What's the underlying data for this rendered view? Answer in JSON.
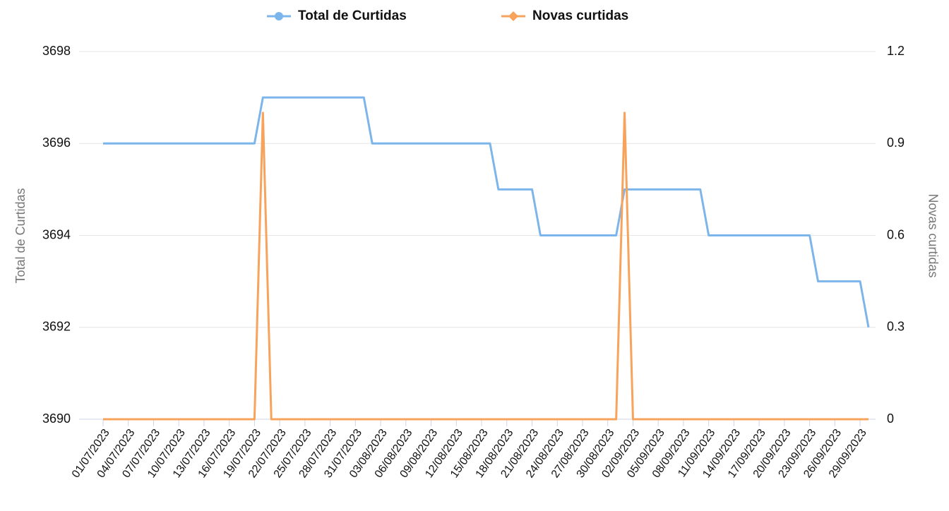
{
  "chart_data": {
    "type": "line",
    "categories": [
      "01/07/2023",
      null,
      null,
      "04/07/2023",
      null,
      null,
      "07/07/2023",
      null,
      null,
      "10/07/2023",
      null,
      null,
      "13/07/2023",
      null,
      null,
      "16/07/2023",
      null,
      null,
      "19/07/2023",
      null,
      null,
      "22/07/2023",
      null,
      null,
      "25/07/2023",
      null,
      null,
      "28/07/2023",
      null,
      null,
      "31/07/2023",
      null,
      null,
      "03/08/2023",
      null,
      null,
      "06/08/2023",
      null,
      null,
      "09/08/2023",
      null,
      null,
      "12/08/2023",
      null,
      null,
      "15/08/2023",
      null,
      null,
      "18/08/2023",
      null,
      null,
      "21/08/2023",
      null,
      null,
      "24/08/2023",
      null,
      null,
      "27/08/2023",
      null,
      null,
      "30/08/2023",
      null,
      null,
      "02/09/2023",
      null,
      null,
      "05/09/2023",
      null,
      null,
      "08/09/2023",
      null,
      null,
      "11/09/2023",
      null,
      null,
      "14/09/2023",
      null,
      null,
      "17/09/2023",
      null,
      null,
      "20/09/2023",
      null,
      null,
      "23/09/2023",
      null,
      null,
      "26/09/2023",
      null,
      null,
      "29/09/2023",
      null
    ],
    "series": [
      {
        "name": "Total de Curtidas",
        "color": "#7cb5ec",
        "axis": "y",
        "values": [
          3696,
          3696,
          3696,
          3696,
          3696,
          3696,
          3696,
          3696,
          3696,
          3696,
          3696,
          3696,
          3696,
          3696,
          3696,
          3696,
          3696,
          3696,
          3696,
          3697,
          3697,
          3697,
          3697,
          3697,
          3697,
          3697,
          3697,
          3697,
          3697,
          3697,
          3697,
          3697,
          3696,
          3696,
          3696,
          3696,
          3696,
          3696,
          3696,
          3696,
          3696,
          3696,
          3696,
          3696,
          3696,
          3696,
          3696,
          3695,
          3695,
          3695,
          3695,
          3695,
          3694,
          3694,
          3694,
          3694,
          3694,
          3694,
          3694,
          3694,
          3694,
          3694,
          3695,
          3695,
          3695,
          3695,
          3695,
          3695,
          3695,
          3695,
          3695,
          3695,
          3694,
          3694,
          3694,
          3694,
          3694,
          3694,
          3694,
          3694,
          3694,
          3694,
          3694,
          3694,
          3694,
          3693,
          3693,
          3693,
          3693,
          3693,
          3693,
          3692
        ]
      },
      {
        "name": "Novas curtidas",
        "color": "#f7a35c",
        "axis": "y2",
        "values": [
          0,
          0,
          0,
          0,
          0,
          0,
          0,
          0,
          0,
          0,
          0,
          0,
          0,
          0,
          0,
          0,
          0,
          0,
          0,
          1,
          0,
          0,
          0,
          0,
          0,
          0,
          0,
          0,
          0,
          0,
          0,
          0,
          0,
          0,
          0,
          0,
          0,
          0,
          0,
          0,
          0,
          0,
          0,
          0,
          0,
          0,
          0,
          0,
          0,
          0,
          0,
          0,
          0,
          0,
          0,
          0,
          0,
          0,
          0,
          0,
          0,
          0,
          1,
          0,
          0,
          0,
          0,
          0,
          0,
          0,
          0,
          0,
          0,
          0,
          0,
          0,
          0,
          0,
          0,
          0,
          0,
          0,
          0,
          0,
          0,
          0,
          0,
          0,
          0,
          0,
          0,
          0
        ]
      }
    ],
    "ylabel": "Total de Curtidas",
    "y2label": "Novas curtidas",
    "ylim": [
      3690,
      3698
    ],
    "yticks": [
      3690,
      3692,
      3694,
      3696,
      3698
    ],
    "y2lim": [
      0,
      1.2
    ],
    "y2ticks": [
      0,
      0.3,
      0.6,
      0.9,
      1.2
    ],
    "grid": true,
    "legend": "top"
  }
}
